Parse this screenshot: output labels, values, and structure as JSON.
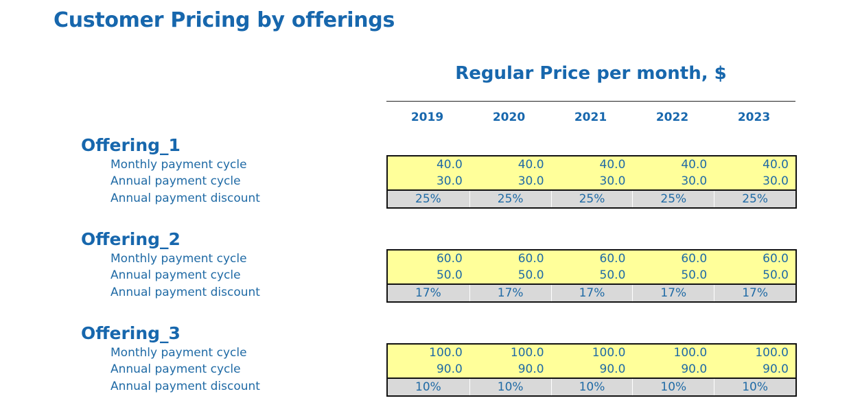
{
  "page": {
    "title": "Customer Pricing by offerings",
    "section_title": "Regular Price per month, $"
  },
  "years": [
    "2019",
    "2020",
    "2021",
    "2022",
    "2023"
  ],
  "row_labels": {
    "monthly": "Monthly payment cycle",
    "annual": "Annual payment cycle",
    "discount": "Annual payment discount"
  },
  "colors": {
    "heading_blue": "#1767ad",
    "text_blue": "#1f6aa5",
    "input_yellow": "#ffff9a",
    "calc_gray": "#d9d9d9"
  },
  "offerings": [
    {
      "name": "Offering_1",
      "monthly": [
        "40.0",
        "40.0",
        "40.0",
        "40.0",
        "40.0"
      ],
      "annual": [
        "30.0",
        "30.0",
        "30.0",
        "30.0",
        "30.0"
      ],
      "discount": [
        "25%",
        "25%",
        "25%",
        "25%",
        "25%"
      ]
    },
    {
      "name": "Offering_2",
      "monthly": [
        "60.0",
        "60.0",
        "60.0",
        "60.0",
        "60.0"
      ],
      "annual": [
        "50.0",
        "50.0",
        "50.0",
        "50.0",
        "50.0"
      ],
      "discount": [
        "17%",
        "17%",
        "17%",
        "17%",
        "17%"
      ]
    },
    {
      "name": "Offering_3",
      "monthly": [
        "100.0",
        "100.0",
        "100.0",
        "100.0",
        "100.0"
      ],
      "annual": [
        "90.0",
        "90.0",
        "90.0",
        "90.0",
        "90.0"
      ],
      "discount": [
        "10%",
        "10%",
        "10%",
        "10%",
        "10%"
      ]
    }
  ]
}
